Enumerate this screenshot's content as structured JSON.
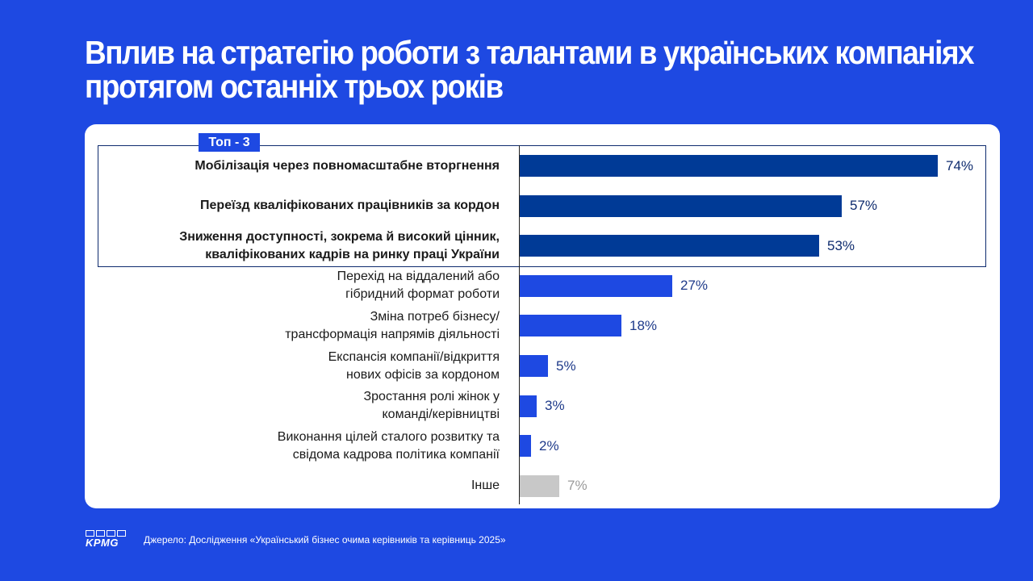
{
  "title_lines": [
    "Вплив на стратегію роботи з талантами в українських компаніях",
    "протягом останніх трьох років"
  ],
  "badge": "Топ - 3",
  "colors": {
    "dark_bar": "#003A96",
    "bar": "#1E49E2",
    "other_bar": "#C8C8C8",
    "dark_text": "#0E2B6E",
    "bar_text": "#1E3A8A",
    "other_text": "#9A9A9A"
  },
  "chart_data": {
    "type": "bar",
    "orientation": "horizontal",
    "title": "Вплив на стратегію роботи з талантами в українських компаніях протягом останніх трьох років",
    "unit": "%",
    "xlim": [
      0,
      100
    ],
    "categories": [
      [
        "Мобілізація через повномасштабне вторгнення"
      ],
      [
        "Переїзд кваліфікованих працівників за кордон"
      ],
      [
        "Зниження доступності, зокрема й високий цінник,",
        "кваліфікованих кадрів на ринку праці України"
      ],
      [
        "Перехід на віддалений або",
        "гібридний формат роботи"
      ],
      [
        "Зміна потреб бізнесу/",
        "трансформація напрямів діяльності"
      ],
      [
        "Експансія компанії/відкриття",
        "нових офісів за кордоном"
      ],
      [
        "Зростання ролі жінок у",
        "команді/керівництві"
      ],
      [
        "Виконання цілей сталого розвитку та",
        "свідома кадрова політика компанії"
      ],
      [
        "Інше"
      ]
    ],
    "values": [
      74,
      57,
      53,
      27,
      18,
      5,
      3,
      2,
      7
    ],
    "value_labels": [
      "74%",
      "57%",
      "53%",
      "27%",
      "18%",
      "5%",
      "3%",
      "2%",
      "7%"
    ],
    "groups": [
      "top3",
      "top3",
      "top3",
      "regular",
      "regular",
      "regular",
      "regular",
      "regular",
      "other"
    ],
    "highlight": "Топ - 3"
  },
  "footer": {
    "logo_text": "KPMG",
    "source": "Джерело: Дослідження «Український бізнес очима керівників та керівниць 2025»"
  }
}
